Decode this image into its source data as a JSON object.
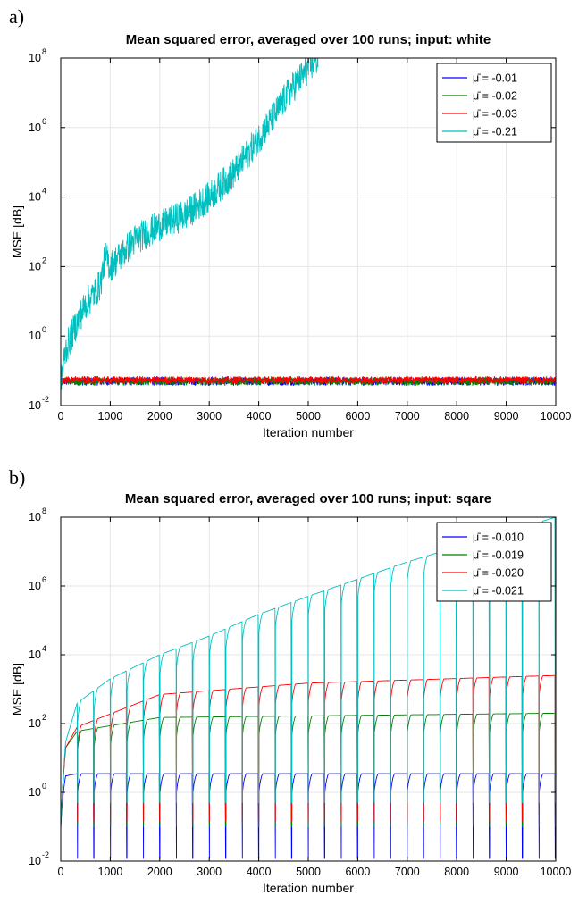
{
  "chart_data": [
    {
      "panel": "a)",
      "type": "line",
      "title": "Mean squared error, averaged over 100 runs; input: white",
      "xlabel": "Iteration number",
      "ylabel": "MSE [dB]",
      "xlim": [
        0,
        10000
      ],
      "ylim": [
        0.01,
        100000000
      ],
      "yscale": "log",
      "grid": true,
      "legend_position": "top-right",
      "x_ticks": [
        "0",
        "1000",
        "2000",
        "3000",
        "4000",
        "5000",
        "6000",
        "7000",
        "8000",
        "9000",
        "10000"
      ],
      "y_ticks": [
        {
          "base": "10",
          "exp": "-2"
        },
        {
          "base": "10",
          "exp": "0"
        },
        {
          "base": "10",
          "exp": "2"
        },
        {
          "base": "10",
          "exp": "4"
        },
        {
          "base": "10",
          "exp": "6"
        },
        {
          "base": "10",
          "exp": "8"
        }
      ],
      "series": [
        {
          "name": "μ̄ = -0.01",
          "color": "#0000ff",
          "points": [
            [
              0,
              0.05
            ],
            [
              10000,
              0.05
            ]
          ],
          "noise": 0.12
        },
        {
          "name": "μ̄ = -0.02",
          "color": "#008000",
          "points": [
            [
              0,
              0.05
            ],
            [
              10000,
              0.05
            ]
          ],
          "noise": 0.11
        },
        {
          "name": "μ̄ = -0.03",
          "color": "#ff0000",
          "points": [
            [
              0,
              0.055
            ],
            [
              10000,
              0.055
            ]
          ],
          "noise": 0.1
        },
        {
          "name": "μ̄ = -0.21",
          "color": "#00bfbf",
          "points": [
            [
              0,
              0.05
            ],
            [
              100,
              0.4
            ],
            [
              300,
              2
            ],
            [
              500,
              8
            ],
            [
              800,
              30
            ],
            [
              900,
              200
            ],
            [
              1000,
              100
            ],
            [
              1200,
              200
            ],
            [
              1500,
              600
            ],
            [
              2000,
              1500
            ],
            [
              2500,
              3000
            ],
            [
              3000,
              10000
            ],
            [
              3500,
              50000
            ],
            [
              4000,
              500000
            ],
            [
              4300,
              2000000
            ],
            [
              4600,
              10000000
            ],
            [
              5000,
              50000000
            ],
            [
              5200,
              100000000
            ]
          ],
          "noise": 0.45
        }
      ]
    },
    {
      "panel": "b)",
      "type": "line",
      "title": "Mean squared error, averaged over 100 runs; input: sqare",
      "xlabel": "Iteration number",
      "ylabel": "MSE [dB]",
      "xlim": [
        0,
        10000
      ],
      "ylim": [
        0.01,
        100000000
      ],
      "yscale": "log",
      "grid": true,
      "legend_position": "top-right",
      "period": 333,
      "x_ticks": [
        "0",
        "1000",
        "2000",
        "3000",
        "4000",
        "5000",
        "6000",
        "7000",
        "8000",
        "9000",
        "10000"
      ],
      "y_ticks": [
        {
          "base": "10",
          "exp": "-2"
        },
        {
          "base": "10",
          "exp": "0"
        },
        {
          "base": "10",
          "exp": "2"
        },
        {
          "base": "10",
          "exp": "4"
        },
        {
          "base": "10",
          "exp": "6"
        },
        {
          "base": "10",
          "exp": "8"
        }
      ],
      "series": [
        {
          "name": "μ̄ = -0.010",
          "color": "#0000ff",
          "envelope": [
            [
              0,
              0.5
            ],
            [
              100,
              3
            ],
            [
              333,
              3.5
            ],
            [
              10000,
              3.5
            ]
          ],
          "dip": 0.012
        },
        {
          "name": "μ̄ = -0.019",
          "color": "#008000",
          "envelope": [
            [
              0,
              0.5
            ],
            [
              100,
              20
            ],
            [
              333,
              60
            ],
            [
              2000,
              150
            ],
            [
              10000,
              200
            ]
          ],
          "dip": 0.1
        },
        {
          "name": "μ̄ = -0.020",
          "color": "#ff0000",
          "envelope": [
            [
              0,
              0.5
            ],
            [
              100,
              20
            ],
            [
              333,
              80
            ],
            [
              2000,
              700
            ],
            [
              5000,
              1500
            ],
            [
              10000,
              2500
            ]
          ],
          "dip": 0.15
        },
        {
          "name": "μ̄ = -0.021",
          "color": "#00bfbf",
          "envelope": [
            [
              0,
              0.5
            ],
            [
              100,
              30
            ],
            [
              333,
              400
            ],
            [
              1000,
              2000
            ],
            [
              2000,
              10000
            ],
            [
              3000,
              35000
            ],
            [
              4000,
              150000
            ],
            [
              5000,
              500000
            ],
            [
              7000,
              5000000
            ],
            [
              10000,
              100000000
            ]
          ],
          "dip": 0.5
        }
      ]
    }
  ]
}
